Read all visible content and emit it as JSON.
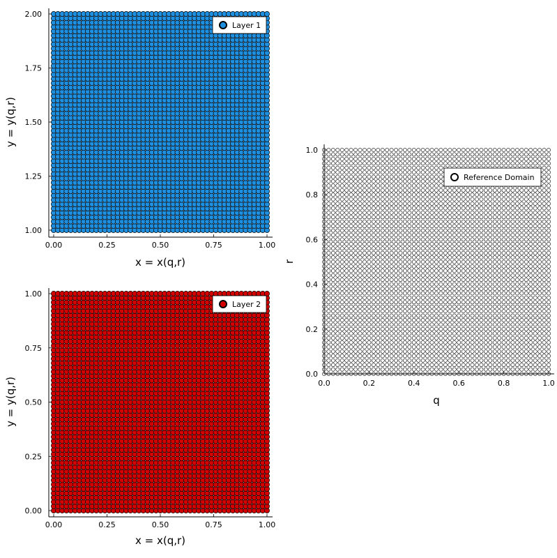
{
  "chart_data": [
    {
      "type": "scatter",
      "title": "",
      "xlabel": "x = x(q,r)",
      "ylabel": "y = y(q,r)",
      "xlim": [
        0,
        1
      ],
      "ylim": [
        1,
        2
      ],
      "xticks": [
        "0.00",
        "0.25",
        "0.50",
        "0.75",
        "1.00"
      ],
      "yticks": [
        "1.00",
        "1.25",
        "1.50",
        "1.75",
        "2.00"
      ],
      "grid": false,
      "legend_position": "top-right",
      "series": [
        {
          "name": "Layer 1",
          "color": "#1f8fe0",
          "grid_points": {
            "x_range": [
              0,
              1
            ],
            "y_range": [
              1,
              2
            ],
            "nx": 51,
            "ny": 51
          }
        }
      ]
    },
    {
      "type": "scatter",
      "title": "",
      "xlabel": "x = x(q,r)",
      "ylabel": "y = y(q,r)",
      "xlim": [
        0,
        1
      ],
      "ylim": [
        0,
        1
      ],
      "xticks": [
        "0.00",
        "0.25",
        "0.50",
        "0.75",
        "1.00"
      ],
      "yticks": [
        "0.00",
        "0.25",
        "0.50",
        "0.75",
        "1.00"
      ],
      "grid": false,
      "legend_position": "top-right",
      "series": [
        {
          "name": "Layer 2",
          "color": "#d40000",
          "grid_points": {
            "x_range": [
              0,
              1
            ],
            "y_range": [
              0,
              1
            ],
            "nx": 51,
            "ny": 51
          }
        }
      ]
    },
    {
      "type": "scatter",
      "title": "",
      "xlabel": "q",
      "ylabel": "r",
      "xlim": [
        0,
        1
      ],
      "ylim": [
        0,
        1
      ],
      "xticks": [
        "0.0",
        "0.2",
        "0.4",
        "0.6",
        "0.8",
        "1.0"
      ],
      "yticks": [
        "0.0",
        "0.2",
        "0.4",
        "0.6",
        "0.8",
        "1.0"
      ],
      "grid": false,
      "legend_position": "top-right",
      "series": [
        {
          "name": "Reference Domain",
          "color": "#ffffff",
          "grid_points": {
            "x_range": [
              0,
              1
            ],
            "y_range": [
              0,
              1
            ],
            "nx": 51,
            "ny": 51
          }
        }
      ]
    }
  ]
}
